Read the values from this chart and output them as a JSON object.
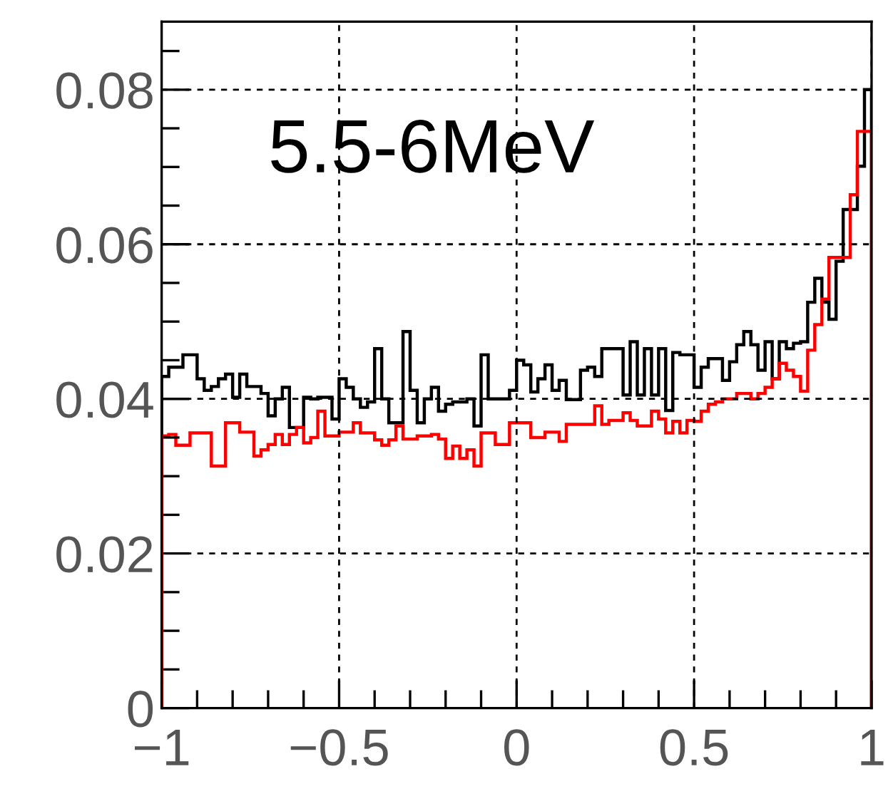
{
  "chart_data": {
    "type": "histogram",
    "annotations": [
      "5.5-6MeV"
    ],
    "bins": [
      -1,
      -0.98,
      -0.96,
      -0.94,
      -0.92,
      -0.9,
      -0.88,
      -0.86,
      -0.84,
      -0.82,
      -0.8,
      -0.78,
      -0.76,
      -0.74,
      -0.72,
      -0.7,
      -0.68,
      -0.66,
      -0.64,
      -0.62,
      -0.6,
      -0.58,
      -0.56,
      -0.54,
      -0.52,
      -0.5,
      -0.48,
      -0.46,
      -0.44,
      -0.42,
      -0.4,
      -0.38,
      -0.36,
      -0.34,
      -0.32,
      -0.3,
      -0.28,
      -0.26,
      -0.24,
      -0.22,
      -0.2,
      -0.18,
      -0.16,
      -0.14,
      -0.12,
      -0.1,
      -0.08,
      -0.06,
      -0.04,
      -0.02,
      0,
      0.02,
      0.04,
      0.06,
      0.08,
      0.1,
      0.12,
      0.14,
      0.16,
      0.18,
      0.2,
      0.22,
      0.24,
      0.26,
      0.28,
      0.3,
      0.32,
      0.34,
      0.36,
      0.38,
      0.4,
      0.42,
      0.44,
      0.46,
      0.48,
      0.5,
      0.52,
      0.54,
      0.56,
      0.58,
      0.6,
      0.62,
      0.64,
      0.66,
      0.68,
      0.7,
      0.72,
      0.74,
      0.76,
      0.78,
      0.8,
      0.82,
      0.84,
      0.86,
      0.88,
      0.9,
      0.92,
      0.94,
      0.96,
      0.98,
      1
    ],
    "series": [
      {
        "color": "#000000",
        "values": [
          0.0429,
          0.0441,
          0.0441,
          0.0457,
          0.0457,
          0.0426,
          0.0411,
          0.0416,
          0.0426,
          0.0432,
          0.0402,
          0.0432,
          0.0416,
          0.0416,
          0.0407,
          0.0378,
          0.04,
          0.0415,
          0.0363,
          0.0363,
          0.0402,
          0.04,
          0.0402,
          0.0402,
          0.0374,
          0.0426,
          0.0415,
          0.04,
          0.0389,
          0.0396,
          0.0465,
          0.04,
          0.0369,
          0.0369,
          0.0487,
          0.0411,
          0.0369,
          0.04,
          0.0415,
          0.0384,
          0.0393,
          0.0396,
          0.0396,
          0.04,
          0.0365,
          0.0457,
          0.04,
          0.04,
          0.04,
          0.0411,
          0.045,
          0.0444,
          0.0409,
          0.0426,
          0.0444,
          0.0411,
          0.0424,
          0.0399,
          0.0399,
          0.0437,
          0.0441,
          0.0429,
          0.0465,
          0.0465,
          0.0465,
          0.0405,
          0.0474,
          0.0405,
          0.0465,
          0.0405,
          0.0465,
          0.0385,
          0.046,
          0.0457,
          0.0457,
          0.0415,
          0.0441,
          0.0452,
          0.0452,
          0.0424,
          0.0448,
          0.047,
          0.0487,
          0.047,
          0.0437,
          0.0474,
          0.0426,
          0.0474,
          0.0465,
          0.0472,
          0.0474,
          0.0525,
          0.0556,
          0.0525,
          0.0503,
          0.0578,
          0.0645,
          0.0645,
          0.0701,
          0.08
        ]
      },
      {
        "color": "#ff0000",
        "values": [
          0.0352,
          0.0354,
          0.034,
          0.034,
          0.0356,
          0.0356,
          0.0356,
          0.0313,
          0.0313,
          0.0369,
          0.0369,
          0.0357,
          0.0357,
          0.0326,
          0.0334,
          0.0341,
          0.0354,
          0.0341,
          0.0354,
          0.0363,
          0.0343,
          0.035,
          0.0384,
          0.0352,
          0.0352,
          0.0357,
          0.0357,
          0.0369,
          0.0356,
          0.0356,
          0.0347,
          0.034,
          0.0347,
          0.0365,
          0.0348,
          0.0348,
          0.0352,
          0.0352,
          0.0354,
          0.0348,
          0.0323,
          0.0339,
          0.0323,
          0.0334,
          0.0313,
          0.0356,
          0.0356,
          0.0341,
          0.0341,
          0.0369,
          0.0369,
          0.0369,
          0.035,
          0.035,
          0.0357,
          0.0357,
          0.0345,
          0.0367,
          0.0367,
          0.0367,
          0.0367,
          0.0391,
          0.0367,
          0.0372,
          0.0372,
          0.0382,
          0.0372,
          0.0365,
          0.0365,
          0.0384,
          0.0374,
          0.0356,
          0.0371,
          0.0356,
          0.0372,
          0.0371,
          0.0384,
          0.0393,
          0.0396,
          0.04,
          0.04,
          0.0407,
          0.0407,
          0.04,
          0.0407,
          0.0415,
          0.0426,
          0.0446,
          0.0437,
          0.0429,
          0.041,
          0.0463,
          0.0496,
          0.0529,
          0.0583,
          0.0583,
          0.0583,
          0.0664,
          0.0746,
          0.0746
        ]
      }
    ],
    "xlim": [
      -1,
      1
    ],
    "ylim": [
      0,
      0.0888
    ],
    "xticks": [
      {
        "value": -1,
        "label": "−1"
      },
      {
        "value": -0.5,
        "label": "−0.5"
      },
      0,
      0.5,
      1
    ],
    "yticks": [
      0,
      0.02,
      0.04,
      0.06,
      0.08
    ],
    "grid": true
  }
}
